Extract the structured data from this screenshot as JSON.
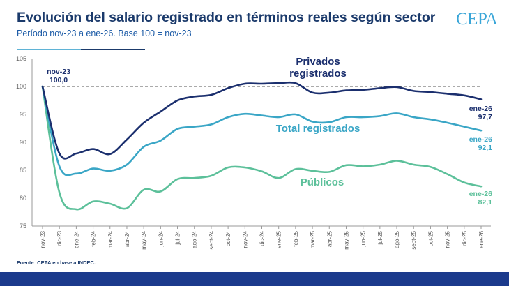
{
  "header": {
    "title": "Evolución del salario registrado en términos reales según sector",
    "subtitle": "Período nov-23 a ene-26. Base 100 = nov-23",
    "logo": "CEPA"
  },
  "footer": {
    "source": "Fuente: CEPA en base a INDEC."
  },
  "chart_data": {
    "type": "line",
    "title": "Evolución del salario registrado en términos reales según sector",
    "subtitle": "Período nov-23 a ene-26. Base 100 = nov-23",
    "xlabel": "",
    "ylabel": "",
    "ylim": [
      75,
      105
    ],
    "yticks": [
      75,
      80,
      85,
      90,
      95,
      100,
      105
    ],
    "grid": false,
    "reference_line": 100,
    "categories": [
      "nov-23",
      "dic-23",
      "ene-24",
      "feb-24",
      "mar-24",
      "abr-24",
      "may-24",
      "jun-24",
      "jul-24",
      "ago-24",
      "sept-24",
      "oct-24",
      "nov-24",
      "dic-24",
      "ene-25",
      "feb-25",
      "mar-25",
      "abr-25",
      "may-25",
      "jun-25",
      "jul-25",
      "ago-25",
      "sept-25",
      "oct-25",
      "nov-25",
      "dic-25",
      "ene-26"
    ],
    "series": [
      {
        "name": "Privados registrados",
        "color": "#1b2f6e",
        "values": [
          100.0,
          88.0,
          88.0,
          88.8,
          87.9,
          90.5,
          93.5,
          95.5,
          97.5,
          98.2,
          98.5,
          99.7,
          100.5,
          100.5,
          100.6,
          100.6,
          98.9,
          98.9,
          99.3,
          99.4,
          99.7,
          99.9,
          99.2,
          99.0,
          98.7,
          98.4,
          97.7
        ]
      },
      {
        "name": "Total registrados",
        "color": "#3aa6c6",
        "values": [
          100.0,
          85.7,
          84.4,
          85.3,
          84.9,
          86.0,
          89.2,
          90.3,
          92.4,
          92.8,
          93.2,
          94.5,
          95.1,
          94.8,
          94.5,
          95.0,
          93.7,
          93.6,
          94.5,
          94.5,
          94.7,
          95.2,
          94.5,
          94.1,
          93.5,
          92.8,
          92.1
        ]
      },
      {
        "name": "Públicos",
        "color": "#5cc09a",
        "values": [
          100.0,
          81.0,
          78.0,
          79.4,
          79.0,
          78.2,
          81.5,
          81.2,
          83.4,
          83.6,
          84.0,
          85.5,
          85.5,
          84.8,
          83.6,
          85.2,
          84.9,
          84.7,
          85.9,
          85.7,
          86.0,
          86.7,
          86.0,
          85.6,
          84.3,
          82.8,
          82.1
        ]
      }
    ],
    "annotations": {
      "start_date": "nov-23",
      "start_value": "100,0",
      "end_privados_date": "ene-26",
      "end_privados_value": "97,7",
      "end_total_date": "ene-26",
      "end_total_value": "92,1",
      "end_publicos_date": "ene-26",
      "end_publicos_value": "82,1",
      "label_privados_line1": "Privados",
      "label_privados_line2": "registrados",
      "label_total": "Total registrados",
      "label_publicos": "Públicos"
    }
  }
}
